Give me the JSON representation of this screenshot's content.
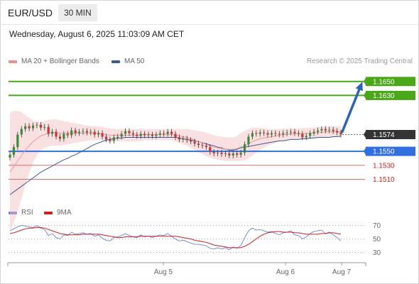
{
  "header": {
    "pair": "EUR/USD",
    "timeframe": "30 MIN"
  },
  "datetime": "Wednesday, August 6, 2025 11:03:09 AM CET",
  "credit": "Research © 2025 Trading Central",
  "colors": {
    "resistance": "#4aa818",
    "support": "#d07070",
    "pivot": "#2f6fe0",
    "current": "#333333",
    "ma50": "#3a5a9a",
    "bollinger": "#f4bcbc",
    "candle_up": "#3b8a3b",
    "candle_down": "#cc3333",
    "rsi": "#6e82d4",
    "rsi_ma": "#cc2222"
  },
  "chart_data": [
    {
      "type": "candlestick",
      "legend": [
        {
          "name": "MA 20 + Bollinger Bands",
          "color": "#f08c8c"
        },
        {
          "name": "MA 50",
          "color": "#3a5a9a"
        }
      ],
      "ylim": [
        1.148,
        1.1665
      ],
      "x_ticks": [
        "Aug 5",
        "Aug 6",
        "Aug 7"
      ],
      "price_levels": [
        {
          "value": 1.165,
          "label": "1.1650",
          "kind": "resistance"
        },
        {
          "value": 1.163,
          "label": "1.1630",
          "kind": "resistance"
        },
        {
          "value": 1.1574,
          "label": "1.1574",
          "kind": "current"
        },
        {
          "value": 1.155,
          "label": "1.1550",
          "kind": "pivot"
        },
        {
          "value": 1.153,
          "label": "1.1530",
          "kind": "support"
        },
        {
          "value": 1.151,
          "label": "1.1510",
          "kind": "support"
        }
      ],
      "close": [
        1.1545,
        1.1556,
        1.1574,
        1.1582,
        1.1586,
        1.1583,
        1.1587,
        1.1588,
        1.1584,
        1.1585,
        1.1575,
        1.1578,
        1.1571,
        1.1568,
        1.1575,
        1.1573,
        1.158,
        1.1576,
        1.1578,
        1.1579,
        1.1577,
        1.1578,
        1.1574,
        1.1576,
        1.1571,
        1.1567,
        1.1565,
        1.157,
        1.1571,
        1.1575,
        1.1579,
        1.1576,
        1.1574,
        1.1572,
        1.1575,
        1.1573,
        1.1574,
        1.1572,
        1.1574,
        1.1576,
        1.1575,
        1.1578,
        1.1575,
        1.157,
        1.1567,
        1.1568,
        1.1566,
        1.1564,
        1.1561,
        1.1559,
        1.1558,
        1.1556,
        1.1549,
        1.1547,
        1.1548,
        1.1546,
        1.1547,
        1.1544,
        1.1547,
        1.1545,
        1.1548,
        1.156,
        1.1571,
        1.1576,
        1.1575,
        1.1577,
        1.1576,
        1.1574,
        1.1576,
        1.1575,
        1.1574,
        1.1576,
        1.1577,
        1.1578,
        1.1576,
        1.1575,
        1.157,
        1.1572,
        1.1576,
        1.1578,
        1.158,
        1.1582,
        1.158,
        1.1581,
        1.1579,
        1.1577,
        1.1574
      ],
      "ma50": [
        1.1488,
        1.1492,
        1.1496,
        1.15,
        1.1504,
        1.1508,
        1.1512,
        1.1516,
        1.152,
        1.1523,
        1.1526,
        1.1529,
        1.1532,
        1.1535,
        1.1538,
        1.154,
        1.1543,
        1.1545,
        1.1548,
        1.1551,
        1.1554,
        1.1557,
        1.156,
        1.1562,
        1.1564,
        1.1566,
        1.1567,
        1.1568,
        1.1569,
        1.1569,
        1.157,
        1.157,
        1.157,
        1.157,
        1.157,
        1.157,
        1.157,
        1.157,
        1.157,
        1.157,
        1.157,
        1.157,
        1.157,
        1.157,
        1.1569,
        1.1568,
        1.1567,
        1.1566,
        1.1565,
        1.1564,
        1.1562,
        1.1561,
        1.1559,
        1.1558,
        1.1556,
        1.1555,
        1.1553,
        1.1552,
        1.1552,
        1.1553,
        1.1555,
        1.1556,
        1.1557,
        1.1558,
        1.1559,
        1.156,
        1.1561,
        1.1562,
        1.1563,
        1.1564,
        1.1565,
        1.1565,
        1.1566,
        1.1567,
        1.1567,
        1.1567,
        1.1568,
        1.1568,
        1.1569,
        1.1569,
        1.157,
        1.157,
        1.157,
        1.157,
        1.1571,
        1.1571,
        1.1572
      ],
      "ma20": [
        1.152,
        1.1528,
        1.1536,
        1.1544,
        1.1552,
        1.1558,
        1.1564,
        1.1568,
        1.1572,
        1.1574,
        1.1576,
        1.1577,
        1.1577,
        1.1576,
        1.1576,
        1.1576,
        1.1576,
        1.1576,
        1.1576,
        1.1576,
        1.1576,
        1.1576,
        1.1576,
        1.1576,
        1.1575,
        1.1574,
        1.1573,
        1.1573,
        1.1573,
        1.1573,
        1.1573,
        1.1573,
        1.1573,
        1.1573,
        1.1574,
        1.1574,
        1.1574,
        1.1574,
        1.1574,
        1.1574,
        1.1574,
        1.1574,
        1.1574,
        1.1573,
        1.1572,
        1.1571,
        1.157,
        1.1568,
        1.1566,
        1.1564,
        1.1562,
        1.156,
        1.1558,
        1.1556,
        1.1555,
        1.1554,
        1.1553,
        1.1553,
        1.1553,
        1.1554,
        1.1556,
        1.1558,
        1.1561,
        1.1564,
        1.1566,
        1.1568,
        1.1569,
        1.157,
        1.1571,
        1.1572,
        1.1573,
        1.1574,
        1.1574,
        1.1575,
        1.1575,
        1.1575,
        1.1575,
        1.1576,
        1.1576,
        1.1576,
        1.1577,
        1.1577,
        1.1578,
        1.1578,
        1.1578,
        1.1578,
        1.1578
      ],
      "bb_width": [
        0.0085,
        0.008,
        0.0072,
        0.0062,
        0.005,
        0.004,
        0.003,
        0.0024,
        0.002,
        0.0019,
        0.0019,
        0.0019,
        0.0019,
        0.0018,
        0.0017,
        0.0016,
        0.0015,
        0.0014,
        0.0013,
        0.0012,
        0.0011,
        0.001,
        0.001,
        0.001,
        0.001,
        0.001,
        0.001,
        0.0009,
        0.0009,
        0.0009,
        0.0009,
        0.0009,
        0.0009,
        0.0009,
        0.0009,
        0.0008,
        0.0008,
        0.0008,
        0.0008,
        0.0008,
        0.0008,
        0.0008,
        0.0008,
        0.0009,
        0.001,
        0.0011,
        0.0012,
        0.0013,
        0.0014,
        0.0015,
        0.0016,
        0.0017,
        0.0017,
        0.0017,
        0.0017,
        0.0017,
        0.0017,
        0.0017,
        0.0017,
        0.0018,
        0.002,
        0.0021,
        0.0021,
        0.002,
        0.0018,
        0.0016,
        0.0014,
        0.0012,
        0.0011,
        0.001,
        0.0009,
        0.0009,
        0.0008,
        0.0008,
        0.0008,
        0.0008,
        0.0008,
        0.0008,
        0.0008,
        0.0008,
        0.0008,
        0.0008,
        0.0008,
        0.0008,
        0.0008,
        0.0008,
        0.0008
      ]
    },
    {
      "type": "line",
      "legend": [
        {
          "name": "RSI",
          "color": "#6e82d4"
        },
        {
          "name": "9MA",
          "color": "#cc2222"
        }
      ],
      "ylim": [
        20,
        80
      ],
      "y_ticks": [
        70,
        50,
        30
      ],
      "rsi": [
        62,
        65,
        68,
        70,
        69,
        68,
        67,
        70,
        66,
        64,
        55,
        58,
        52,
        50,
        56,
        55,
        60,
        57,
        58,
        59,
        57,
        58,
        54,
        56,
        51,
        48,
        47,
        52,
        53,
        55,
        58,
        55,
        53,
        52,
        56,
        53,
        54,
        52,
        54,
        56,
        55,
        58,
        54,
        50,
        47,
        48,
        46,
        44,
        42,
        42,
        41,
        40,
        36,
        35,
        37,
        35,
        37,
        34,
        38,
        36,
        40,
        52,
        62,
        66,
        63,
        64,
        62,
        60,
        61,
        58,
        56,
        59,
        60,
        62,
        56,
        55,
        50,
        53,
        58,
        61,
        62,
        63,
        58,
        60,
        56,
        52,
        47
      ],
      "rsi_ma": [
        58,
        59,
        61,
        63,
        65,
        66,
        66,
        67,
        67,
        66,
        64,
        62,
        60,
        58,
        57,
        56,
        56,
        56,
        56,
        57,
        57,
        57,
        57,
        57,
        56,
        55,
        54,
        53,
        52,
        52,
        53,
        53,
        53,
        53,
        54,
        54,
        54,
        54,
        54,
        54,
        54,
        54,
        54,
        54,
        53,
        52,
        51,
        50,
        48,
        47,
        46,
        45,
        43,
        41,
        40,
        39,
        38,
        37,
        37,
        37,
        37,
        39,
        42,
        46,
        50,
        54,
        57,
        59,
        60,
        61,
        61,
        60,
        60,
        60,
        59,
        59,
        58,
        57,
        57,
        57,
        57,
        58,
        58,
        59,
        59,
        58,
        57
      ]
    }
  ]
}
